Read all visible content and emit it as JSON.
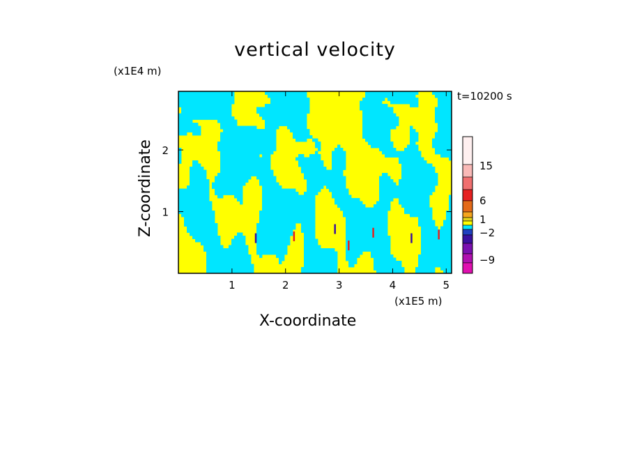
{
  "chart_data": {
    "type": "heatmap",
    "title": "vertical velocity",
    "xlabel": "X-coordinate",
    "ylabel": "Z-coordinate",
    "x_scale_label": "(x1E5 m)",
    "z_scale_label": "(x1E4 m)",
    "time_label": "t=10200 s",
    "xlim": [
      0,
      5.1
    ],
    "zlim": [
      0,
      2.95
    ],
    "x_ticks": [
      1,
      2,
      3,
      4,
      5
    ],
    "z_ticks": [
      1,
      2
    ],
    "colorbar": {
      "labels": [
        {
          "text": "15",
          "value": 15
        },
        {
          "text": "6",
          "value": 6
        },
        {
          "text": "1",
          "value": 1
        },
        {
          "text": "−2",
          "value": -2
        },
        {
          "text": "−9",
          "value": -9
        }
      ],
      "colors_top_to_bottom": [
        "#fff0f0",
        "#f9b9b7",
        "#f06f6f",
        "#e62020",
        "#e46a19",
        "#f5a51d",
        "#e2d21b",
        "#ffff00",
        "#00e6ff",
        "#2040c0",
        "#3a10a0",
        "#7a10b0",
        "#b010b0",
        "#e010b0"
      ]
    },
    "dominant_colors": {
      "updraft": "#ffff00",
      "downdraft": "#00e6ff",
      "strong_up": "#e62020",
      "strong_down": "#3a10a0"
    }
  }
}
